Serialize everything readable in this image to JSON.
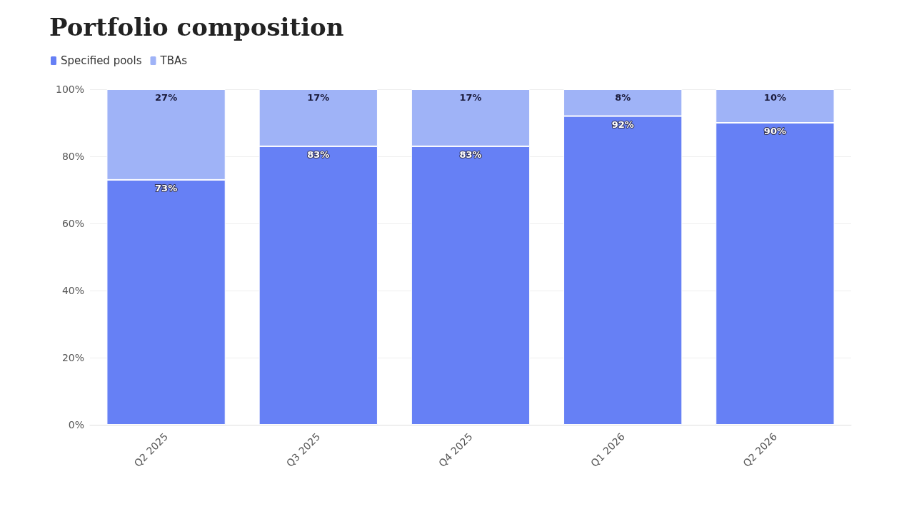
{
  "chart_data": {
    "type": "bar",
    "title": "Portfolio composition",
    "stacked": true,
    "categories": [
      "Q2 2025",
      "Q3 2025",
      "Q4 2025",
      "Q1 2026",
      "Q2 2026"
    ],
    "series": [
      {
        "name": "Specified pools",
        "color": "#6680f5",
        "values": [
          73,
          83,
          83,
          92,
          90
        ],
        "value_labels": [
          "73%",
          "83%",
          "83%",
          "92%",
          "90%"
        ]
      },
      {
        "name": "TBAs",
        "color": "#9fb3f7",
        "values": [
          27,
          17,
          17,
          8,
          10
        ],
        "value_labels": [
          "27%",
          "17%",
          "17%",
          "8%",
          "10%"
        ]
      }
    ],
    "ylim": [
      0,
      100
    ],
    "yticks": [
      {
        "value": 0,
        "label": "0%"
      },
      {
        "value": 20,
        "label": "20%"
      },
      {
        "value": 40,
        "label": "40%"
      },
      {
        "value": 60,
        "label": "60%"
      },
      {
        "value": 80,
        "label": "80%"
      },
      {
        "value": 100,
        "label": "100%"
      }
    ],
    "grid": "y",
    "legend": "top left"
  }
}
